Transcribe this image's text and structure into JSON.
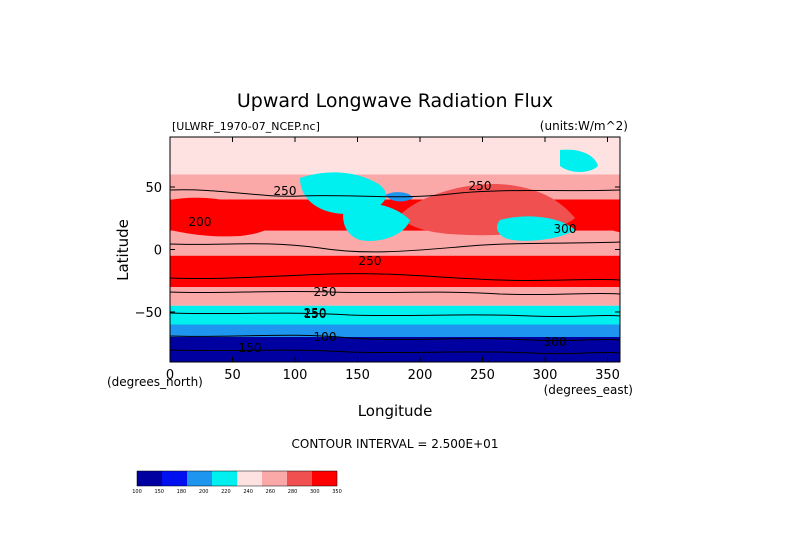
{
  "chart_data": {
    "type": "heatmap",
    "title": "Upward Longwave Radiation Flux",
    "file_label": "[ULWRF_1970-07_NCEP.nc]",
    "units_label": "(units:W/m^2)",
    "xlabel": "Longitude",
    "ylabel": "Latitude",
    "x_unit_label": "(degrees_east)",
    "y_unit_label": "(degrees_north)",
    "xlim": [
      0,
      360
    ],
    "ylim": [
      -90,
      90
    ],
    "x_ticks": [
      0,
      50,
      100,
      150,
      200,
      250,
      300,
      350
    ],
    "y_ticks": [
      -50,
      0,
      50
    ],
    "contour_interval_text": "CONTOUR INTERVAL = 2.500E+01",
    "contour_labels": [
      "250",
      "250",
      "250",
      "250",
      "250",
      "200",
      "150",
      "100",
      "150",
      "300",
      "300"
    ],
    "colorbar": {
      "labels": [
        "100",
        "150",
        "180",
        "200",
        "220",
        "240",
        "260",
        "280",
        "300",
        "350"
      ],
      "colors": [
        "#0000a0",
        "#0010f0",
        "#1e96f0",
        "#00f0f0",
        "#fee2e2",
        "#fba8a8",
        "#f05050",
        "#ff0000"
      ]
    },
    "zonal_bands": [
      {
        "lat_range": [
          60,
          90
        ],
        "value": 235
      },
      {
        "lat_range": [
          40,
          60
        ],
        "value": 250
      },
      {
        "lat_range": [
          15,
          40
        ],
        "value": 285
      },
      {
        "lat_range": [
          -5,
          15
        ],
        "value": 255
      },
      {
        "lat_range": [
          -30,
          -5
        ],
        "value": 290
      },
      {
        "lat_range": [
          -45,
          -30
        ],
        "value": 255
      },
      {
        "lat_range": [
          -60,
          -45
        ],
        "value": 215
      },
      {
        "lat_range": [
          -70,
          -60
        ],
        "value": 195
      },
      {
        "lat_range": [
          -90,
          -70
        ],
        "value": 140
      }
    ]
  }
}
